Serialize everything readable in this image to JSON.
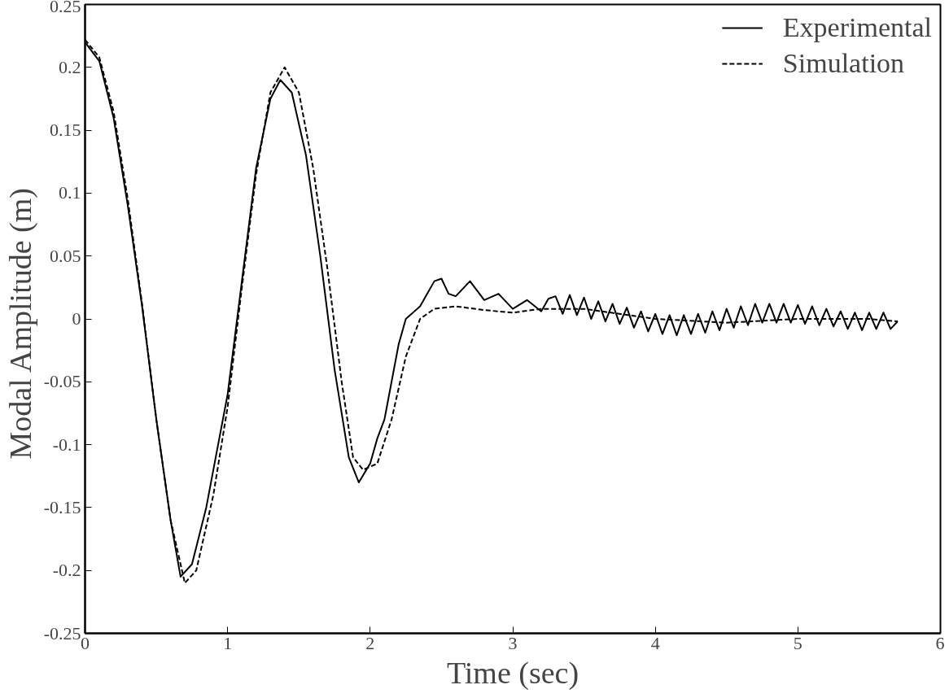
{
  "chart_data": {
    "type": "line",
    "xlabel": "Time (sec)",
    "ylabel": "Modal Amplitude  (m)",
    "xlim": [
      0,
      6
    ],
    "xticks": [
      0,
      1,
      2,
      3,
      4,
      5,
      6
    ],
    "ylim": [
      -0.25,
      0.25
    ],
    "yticks": [
      -0.25,
      -0.2,
      -0.15,
      -0.1,
      -0.05,
      0,
      0.05,
      0.1,
      0.15,
      0.2,
      0.25
    ],
    "grid": false,
    "legend": "top right",
    "series": [
      {
        "name": "Experimental",
        "color": "#000000",
        "line_style": "solid",
        "x": [
          0,
          0.1,
          0.2,
          0.3,
          0.4,
          0.5,
          0.6,
          0.67,
          0.75,
          0.85,
          1.0,
          1.1,
          1.2,
          1.3,
          1.37,
          1.45,
          1.55,
          1.65,
          1.75,
          1.85,
          1.92,
          2.0,
          2.05,
          2.1,
          2.15,
          2.2,
          2.25,
          2.35,
          2.45,
          2.5,
          2.55,
          2.6,
          2.7,
          2.8,
          2.9,
          3.0,
          3.1,
          3.2,
          3.25,
          3.3,
          3.35,
          3.4,
          3.45,
          3.5,
          3.55,
          3.6,
          3.65,
          3.7,
          3.75,
          3.8,
          3.85,
          3.9,
          3.95,
          4.0,
          4.05,
          4.1,
          4.15,
          4.2,
          4.25,
          4.3,
          4.35,
          4.4,
          4.45,
          4.5,
          4.55,
          4.6,
          4.65,
          4.7,
          4.75,
          4.8,
          4.85,
          4.9,
          4.95,
          5.0,
          5.05,
          5.1,
          5.15,
          5.2,
          5.25,
          5.3,
          5.35,
          5.4,
          5.45,
          5.5,
          5.55,
          5.6,
          5.65,
          5.7
        ],
        "values": [
          0.22,
          0.205,
          0.16,
          0.09,
          0.01,
          -0.08,
          -0.16,
          -0.205,
          -0.195,
          -0.15,
          -0.06,
          0.03,
          0.12,
          0.175,
          0.19,
          0.18,
          0.13,
          0.05,
          -0.04,
          -0.11,
          -0.13,
          -0.115,
          -0.095,
          -0.08,
          -0.05,
          -0.02,
          0.0,
          0.01,
          0.03,
          0.032,
          0.02,
          0.018,
          0.03,
          0.015,
          0.02,
          0.008,
          0.015,
          0.006,
          0.016,
          0.018,
          0.004,
          0.019,
          0.003,
          0.017,
          0.0,
          0.014,
          -0.002,
          0.012,
          -0.004,
          0.009,
          -0.007,
          0.006,
          -0.01,
          0.004,
          -0.012,
          0.003,
          -0.013,
          0.003,
          -0.012,
          0.004,
          -0.011,
          0.006,
          -0.009,
          0.008,
          -0.007,
          0.01,
          -0.005,
          0.012,
          -0.003,
          0.012,
          -0.003,
          0.012,
          -0.003,
          0.011,
          -0.004,
          0.01,
          -0.005,
          0.008,
          -0.006,
          0.006,
          -0.008,
          0.005,
          -0.009,
          0.005,
          -0.008,
          0.005,
          -0.008,
          -0.002
        ]
      },
      {
        "name": "Simulation",
        "color": "#000000",
        "line_style": "dashed",
        "x": [
          0,
          0.1,
          0.2,
          0.3,
          0.4,
          0.5,
          0.6,
          0.7,
          0.78,
          0.9,
          1.0,
          1.1,
          1.2,
          1.3,
          1.4,
          1.5,
          1.6,
          1.7,
          1.8,
          1.88,
          1.95,
          2.05,
          2.15,
          2.25,
          2.35,
          2.45,
          2.6,
          2.8,
          3.0,
          3.2,
          3.5,
          4.0,
          4.5,
          5.0,
          5.5,
          5.7
        ],
        "values": [
          0.222,
          0.208,
          0.165,
          0.095,
          0.012,
          -0.08,
          -0.16,
          -0.21,
          -0.2,
          -0.14,
          -0.07,
          0.025,
          0.115,
          0.18,
          0.2,
          0.18,
          0.12,
          0.04,
          -0.05,
          -0.11,
          -0.12,
          -0.115,
          -0.08,
          -0.03,
          0.0,
          0.008,
          0.01,
          0.007,
          0.005,
          0.008,
          0.008,
          0.0,
          -0.003,
          0.0,
          0.0,
          -0.002
        ]
      }
    ]
  }
}
